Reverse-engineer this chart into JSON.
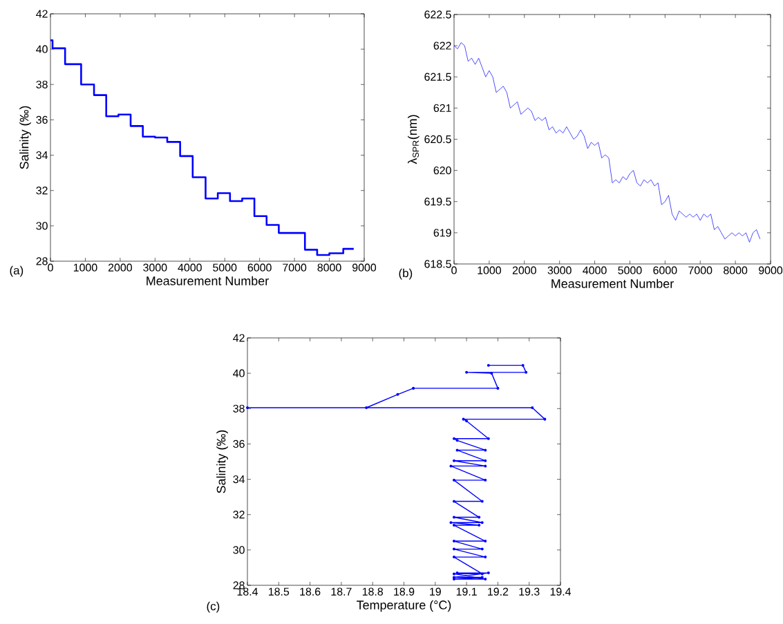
{
  "chart_data": [
    {
      "type": "step",
      "xlabel": "Measurement Number",
      "ylabel": "Salinity (‰)",
      "annotations": [
        "(a)"
      ],
      "color": "#0000ff",
      "xlim": [
        0,
        9000
      ],
      "ylim": [
        28,
        42
      ],
      "xticks": [
        0,
        1000,
        2000,
        3000,
        4000,
        5000,
        6000,
        7000,
        8000,
        9000
      ],
      "yticks": [
        28,
        30,
        32,
        34,
        36,
        38,
        40,
        42
      ],
      "x": [
        0,
        60,
        420,
        880,
        1250,
        1600,
        1950,
        2300,
        2650,
        3000,
        3350,
        3720,
        4080,
        4450,
        4800,
        5150,
        5500,
        5850,
        6200,
        6550,
        7300,
        7650,
        8000,
        8400,
        8700
      ],
      "values": [
        40.5,
        40.05,
        39.15,
        38.0,
        37.4,
        36.2,
        36.3,
        35.65,
        35.05,
        35.0,
        34.75,
        33.95,
        32.75,
        31.55,
        31.85,
        31.4,
        31.55,
        30.55,
        30.05,
        29.6,
        28.65,
        28.35,
        28.45,
        28.7,
        28.7
      ]
    },
    {
      "type": "line",
      "xlabel": "Measurement Number",
      "ylabel": "λ$_{SPR}$(nm)",
      "annotations": [
        "(b)"
      ],
      "color": "#0000ff",
      "xlim": [
        0,
        9000
      ],
      "ylim": [
        618.5,
        622.5
      ],
      "xticks": [
        0,
        1000,
        2000,
        3000,
        4000,
        5000,
        6000,
        7000,
        8000,
        9000
      ],
      "yticks": [
        618.5,
        619,
        619.5,
        620,
        620.5,
        621,
        621.5,
        622,
        622.5
      ],
      "x": [
        0,
        100,
        200,
        300,
        400,
        500,
        600,
        700,
        800,
        900,
        1000,
        1100,
        1200,
        1300,
        1400,
        1500,
        1600,
        1700,
        1800,
        1900,
        2000,
        2100,
        2200,
        2300,
        2400,
        2500,
        2600,
        2700,
        2800,
        2900,
        3000,
        3100,
        3200,
        3300,
        3400,
        3500,
        3600,
        3700,
        3800,
        3900,
        4000,
        4100,
        4200,
        4300,
        4400,
        4500,
        4600,
        4700,
        4800,
        4900,
        5000,
        5100,
        5200,
        5300,
        5400,
        5500,
        5600,
        5700,
        5800,
        5900,
        6000,
        6100,
        6200,
        6300,
        6400,
        6500,
        6600,
        6700,
        6800,
        6900,
        7000,
        7100,
        7200,
        7300,
        7400,
        7500,
        7600,
        7700,
        7800,
        7900,
        8000,
        8100,
        8200,
        8300,
        8400,
        8500,
        8600,
        8700
      ],
      "values": [
        622.0,
        621.95,
        622.05,
        622.0,
        621.75,
        621.8,
        621.7,
        621.8,
        621.65,
        621.5,
        621.6,
        621.5,
        621.25,
        621.3,
        621.35,
        621.25,
        621.0,
        621.05,
        621.1,
        620.9,
        620.95,
        621.0,
        620.95,
        620.8,
        620.85,
        620.8,
        620.85,
        620.65,
        620.7,
        620.6,
        620.65,
        620.6,
        620.7,
        620.6,
        620.5,
        620.55,
        620.65,
        620.55,
        620.35,
        620.45,
        620.4,
        620.45,
        620.2,
        620.25,
        620.2,
        619.8,
        619.85,
        619.8,
        619.9,
        619.85,
        619.95,
        620.0,
        619.8,
        619.75,
        619.85,
        619.8,
        619.85,
        619.75,
        619.8,
        619.45,
        619.5,
        619.6,
        619.3,
        619.2,
        619.35,
        619.3,
        619.25,
        619.3,
        619.25,
        619.3,
        619.2,
        619.3,
        619.25,
        619.3,
        619.05,
        619.1,
        619.0,
        618.9,
        618.95,
        619.0,
        618.95,
        619.0,
        618.95,
        619.0,
        618.85,
        619.0,
        619.05,
        618.9
      ]
    },
    {
      "type": "line",
      "marker": "circle",
      "xlabel": "Temperature (°C)",
      "ylabel": "Salinity (‰)",
      "annotations": [
        "(c)"
      ],
      "color": "#0000ff",
      "xlim": [
        18.4,
        19.4
      ],
      "ylim": [
        28,
        42
      ],
      "xticks": [
        18.4,
        18.5,
        18.6,
        18.7,
        18.8,
        18.9,
        19,
        19.1,
        19.2,
        19.3,
        19.4
      ],
      "yticks": [
        28,
        30,
        32,
        34,
        36,
        38,
        40,
        42
      ],
      "x": [
        19.17,
        19.28,
        19.29,
        19.1,
        19.18,
        19.2,
        18.93,
        18.88,
        18.78,
        18.4,
        19.31,
        19.35,
        19.09,
        19.1,
        19.17,
        19.06,
        19.07,
        19.16,
        19.07,
        19.16,
        19.06,
        19.16,
        19.05,
        19.16,
        19.06,
        19.15,
        19.06,
        19.14,
        19.06,
        19.15,
        19.05,
        19.14,
        19.06,
        19.16,
        19.06,
        19.15,
        19.06,
        19.16,
        19.06,
        19.15,
        19.06,
        19.16,
        19.06,
        19.15,
        19.06,
        19.17,
        19.07
      ],
      "values": [
        40.45,
        40.45,
        40.05,
        40.05,
        40.0,
        39.15,
        39.15,
        38.8,
        38.05,
        38.05,
        38.05,
        37.4,
        37.4,
        37.3,
        36.3,
        36.3,
        36.2,
        35.65,
        35.65,
        35.05,
        35.05,
        34.75,
        34.75,
        33.95,
        33.95,
        32.75,
        32.75,
        31.85,
        31.85,
        31.55,
        31.55,
        31.4,
        31.4,
        30.5,
        30.5,
        30.05,
        30.05,
        29.6,
        29.6,
        28.65,
        28.65,
        28.35,
        28.35,
        28.45,
        28.45,
        28.7,
        28.7
      ]
    }
  ]
}
